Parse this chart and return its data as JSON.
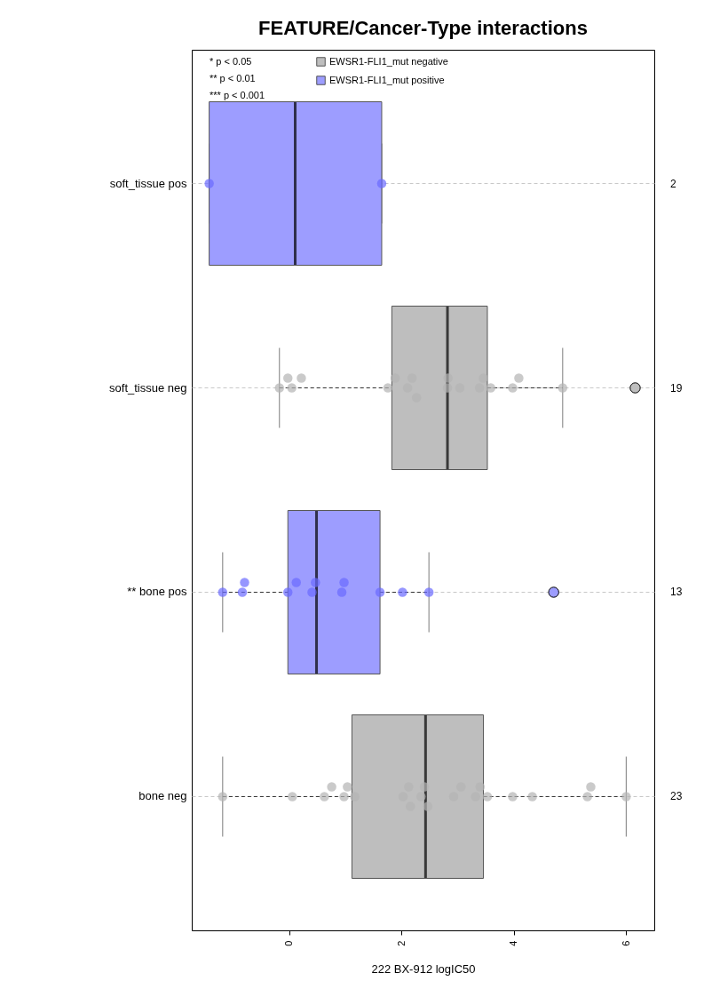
{
  "chart_data": {
    "type": "box",
    "title": "FEATURE/Cancer-Type interactions",
    "xlabel": "222 BX-912 logIC50",
    "orientation": "horizontal",
    "categories": [
      "soft_tissue pos",
      "soft_tissue neg",
      "** bone pos",
      "bone neg"
    ],
    "xlim": [
      -1.73,
      6.5
    ],
    "xticks": [
      0,
      2,
      4,
      6
    ],
    "grid": "y",
    "legend": "top left",
    "marker": "circle",
    "series": [
      {
        "name": "EWSR1-FLI1_mut negative",
        "color": "#bebebe",
        "boxes": [
          null,
          {
            "low": -0.17,
            "q1": 1.83,
            "median": 2.82,
            "q3": 3.53,
            "high": 4.87,
            "outliers": [
              6.16
            ]
          },
          null,
          {
            "low": -1.18,
            "q1": 1.12,
            "median": 2.43,
            "q3": 3.46,
            "high": 6.0
          }
        ]
      },
      {
        "name": "EWSR1-FLI1_mut positive",
        "color": "#9d9dff",
        "boxes": [
          {
            "low": -1.42,
            "q1": -1.42,
            "median": 0.11,
            "q3": 1.65,
            "high": 1.65
          },
          null,
          {
            "low": -1.18,
            "q1": -0.02,
            "median": 0.49,
            "q3": 1.62,
            "high": 2.49,
            "outliers": [
              4.71
            ]
          },
          null
        ]
      },
      {
        "type": "scatter",
        "color": "#b4b4b4",
        "x": [
          "soft_tissue neg",
          "soft_tissue neg",
          "soft_tissue neg",
          "soft_tissue neg",
          "soft_tissue neg",
          "soft_tissue neg",
          "soft_tissue neg",
          "soft_tissue neg",
          "soft_tissue neg",
          "soft_tissue neg",
          "soft_tissue neg",
          "soft_tissue neg",
          "soft_tissue neg",
          "soft_tissue neg",
          "soft_tissue neg",
          "soft_tissue neg",
          "soft_tissue neg",
          "soft_tissue neg",
          "bone neg",
          "bone neg",
          "bone neg",
          "bone neg",
          "bone neg",
          "bone neg",
          "bone neg",
          "bone neg",
          "bone neg",
          "bone neg",
          "bone neg",
          "bone neg",
          "bone neg",
          "bone neg",
          "bone neg",
          "bone neg",
          "bone neg",
          "bone neg",
          "bone neg",
          "bone neg",
          "bone neg",
          "bone neg",
          "bone neg"
        ],
        "values": [
          -0.17,
          -0.02,
          0.05,
          0.22,
          1.76,
          1.89,
          2.11,
          2.19,
          2.27,
          2.82,
          2.83,
          3.04,
          3.39,
          3.46,
          3.59,
          3.98,
          4.09,
          4.87,
          -1.18,
          0.06,
          0.63,
          0.76,
          0.98,
          1.04,
          1.17,
          2.03,
          2.13,
          2.16,
          2.35,
          2.41,
          2.47,
          2.93,
          3.06,
          3.32,
          3.4,
          3.53,
          3.98,
          4.33,
          5.31,
          5.37,
          6.0
        ]
      },
      {
        "type": "scatter",
        "color": "#6a6aff",
        "x": [
          "soft_tissue pos",
          "soft_tissue pos",
          "** bone pos",
          "** bone pos",
          "** bone pos",
          "** bone pos",
          "** bone pos",
          "** bone pos",
          "** bone pos",
          "** bone pos",
          "** bone pos",
          "** bone pos",
          "** bone pos",
          "** bone pos"
        ],
        "values": [
          -1.42,
          1.65,
          -1.18,
          -0.83,
          -0.79,
          -0.02,
          0.13,
          0.41,
          0.47,
          0.94,
          0.98,
          1.62,
          2.02,
          2.49
        ]
      }
    ],
    "y2_categories": [
      "2",
      "19",
      "13",
      "23"
    ],
    "annotations": [
      "* p < 0.05",
      "** p < 0.01",
      "*** p < 0.001"
    ]
  }
}
